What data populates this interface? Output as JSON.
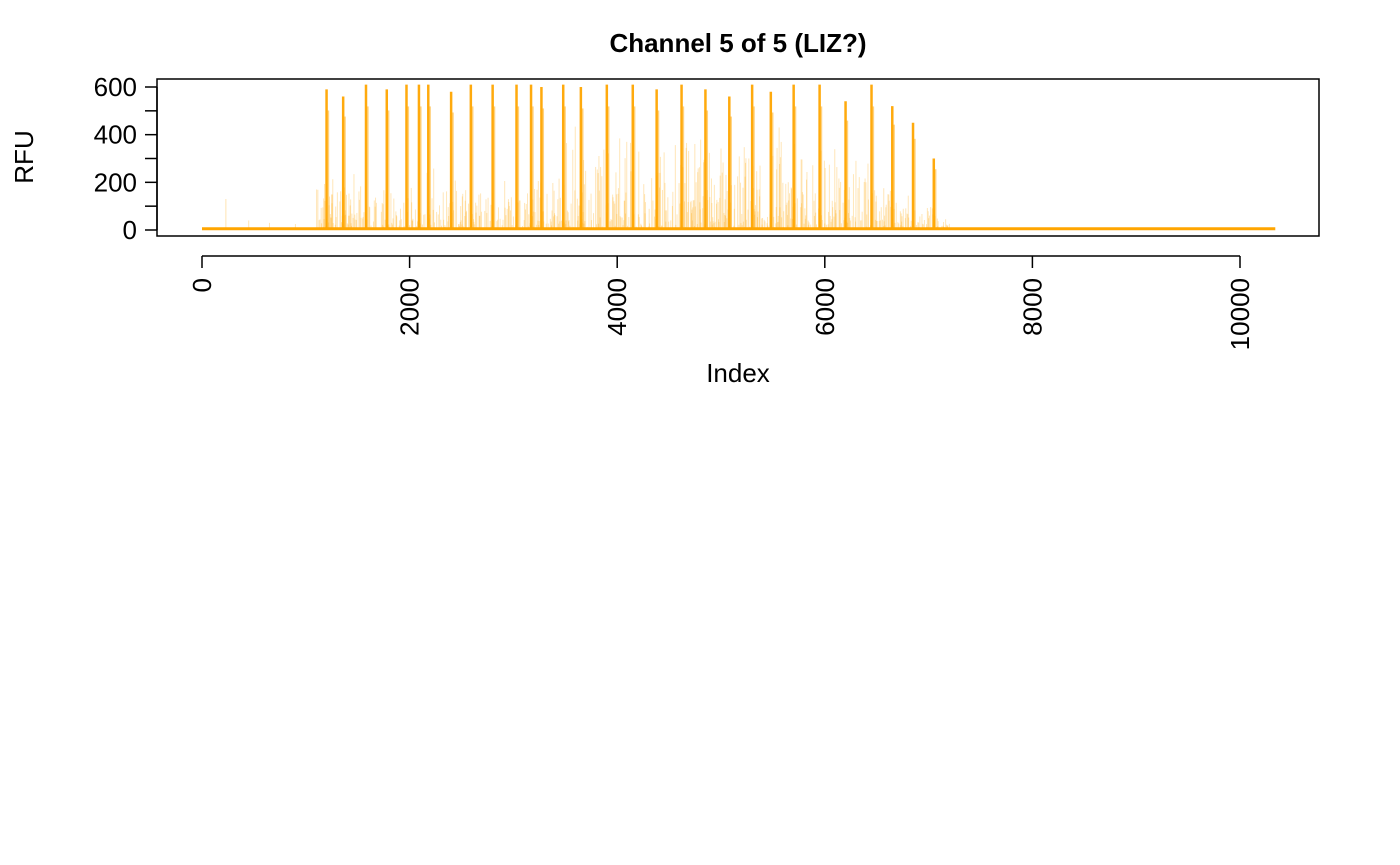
{
  "chart_data": {
    "type": "line",
    "title": "Channel 5 of 5 (LIZ?)",
    "xlabel": "Index",
    "ylabel": "RFU",
    "xlim": [
      0,
      10340
    ],
    "ylim": [
      0,
      620
    ],
    "x_ticks": [
      0,
      2000,
      4000,
      6000,
      8000,
      10000
    ],
    "x_tick_labels": [
      "0",
      "2000",
      "4000",
      "6000",
      "8000",
      "10000"
    ],
    "y_ticks": [
      0,
      200,
      400,
      600
    ],
    "y_tick_labels": [
      "0",
      "200",
      "400",
      "600"
    ],
    "y_minor_ticks": [
      100,
      300,
      500
    ],
    "grid": false,
    "legend": "none",
    "series_color": "#FFA500",
    "baseline": 5,
    "peaks": [
      {
        "x": 1200,
        "y": 590
      },
      {
        "x": 1360,
        "y": 560
      },
      {
        "x": 1580,
        "y": 610
      },
      {
        "x": 1780,
        "y": 590
      },
      {
        "x": 1970,
        "y": 610
      },
      {
        "x": 2090,
        "y": 610
      },
      {
        "x": 2180,
        "y": 610
      },
      {
        "x": 2400,
        "y": 580
      },
      {
        "x": 2590,
        "y": 610
      },
      {
        "x": 2800,
        "y": 610
      },
      {
        "x": 3030,
        "y": 610
      },
      {
        "x": 3170,
        "y": 610
      },
      {
        "x": 3270,
        "y": 600
      },
      {
        "x": 3480,
        "y": 610
      },
      {
        "x": 3650,
        "y": 600
      },
      {
        "x": 3900,
        "y": 610
      },
      {
        "x": 4150,
        "y": 610
      },
      {
        "x": 4380,
        "y": 590
      },
      {
        "x": 4620,
        "y": 610
      },
      {
        "x": 4850,
        "y": 590
      },
      {
        "x": 5080,
        "y": 560
      },
      {
        "x": 5300,
        "y": 610
      },
      {
        "x": 5480,
        "y": 580
      },
      {
        "x": 5700,
        "y": 610
      },
      {
        "x": 5950,
        "y": 610
      },
      {
        "x": 6200,
        "y": 540
      },
      {
        "x": 6450,
        "y": 610
      },
      {
        "x": 6650,
        "y": 520
      },
      {
        "x": 6850,
        "y": 450
      },
      {
        "x": 7050,
        "y": 300
      }
    ]
  }
}
